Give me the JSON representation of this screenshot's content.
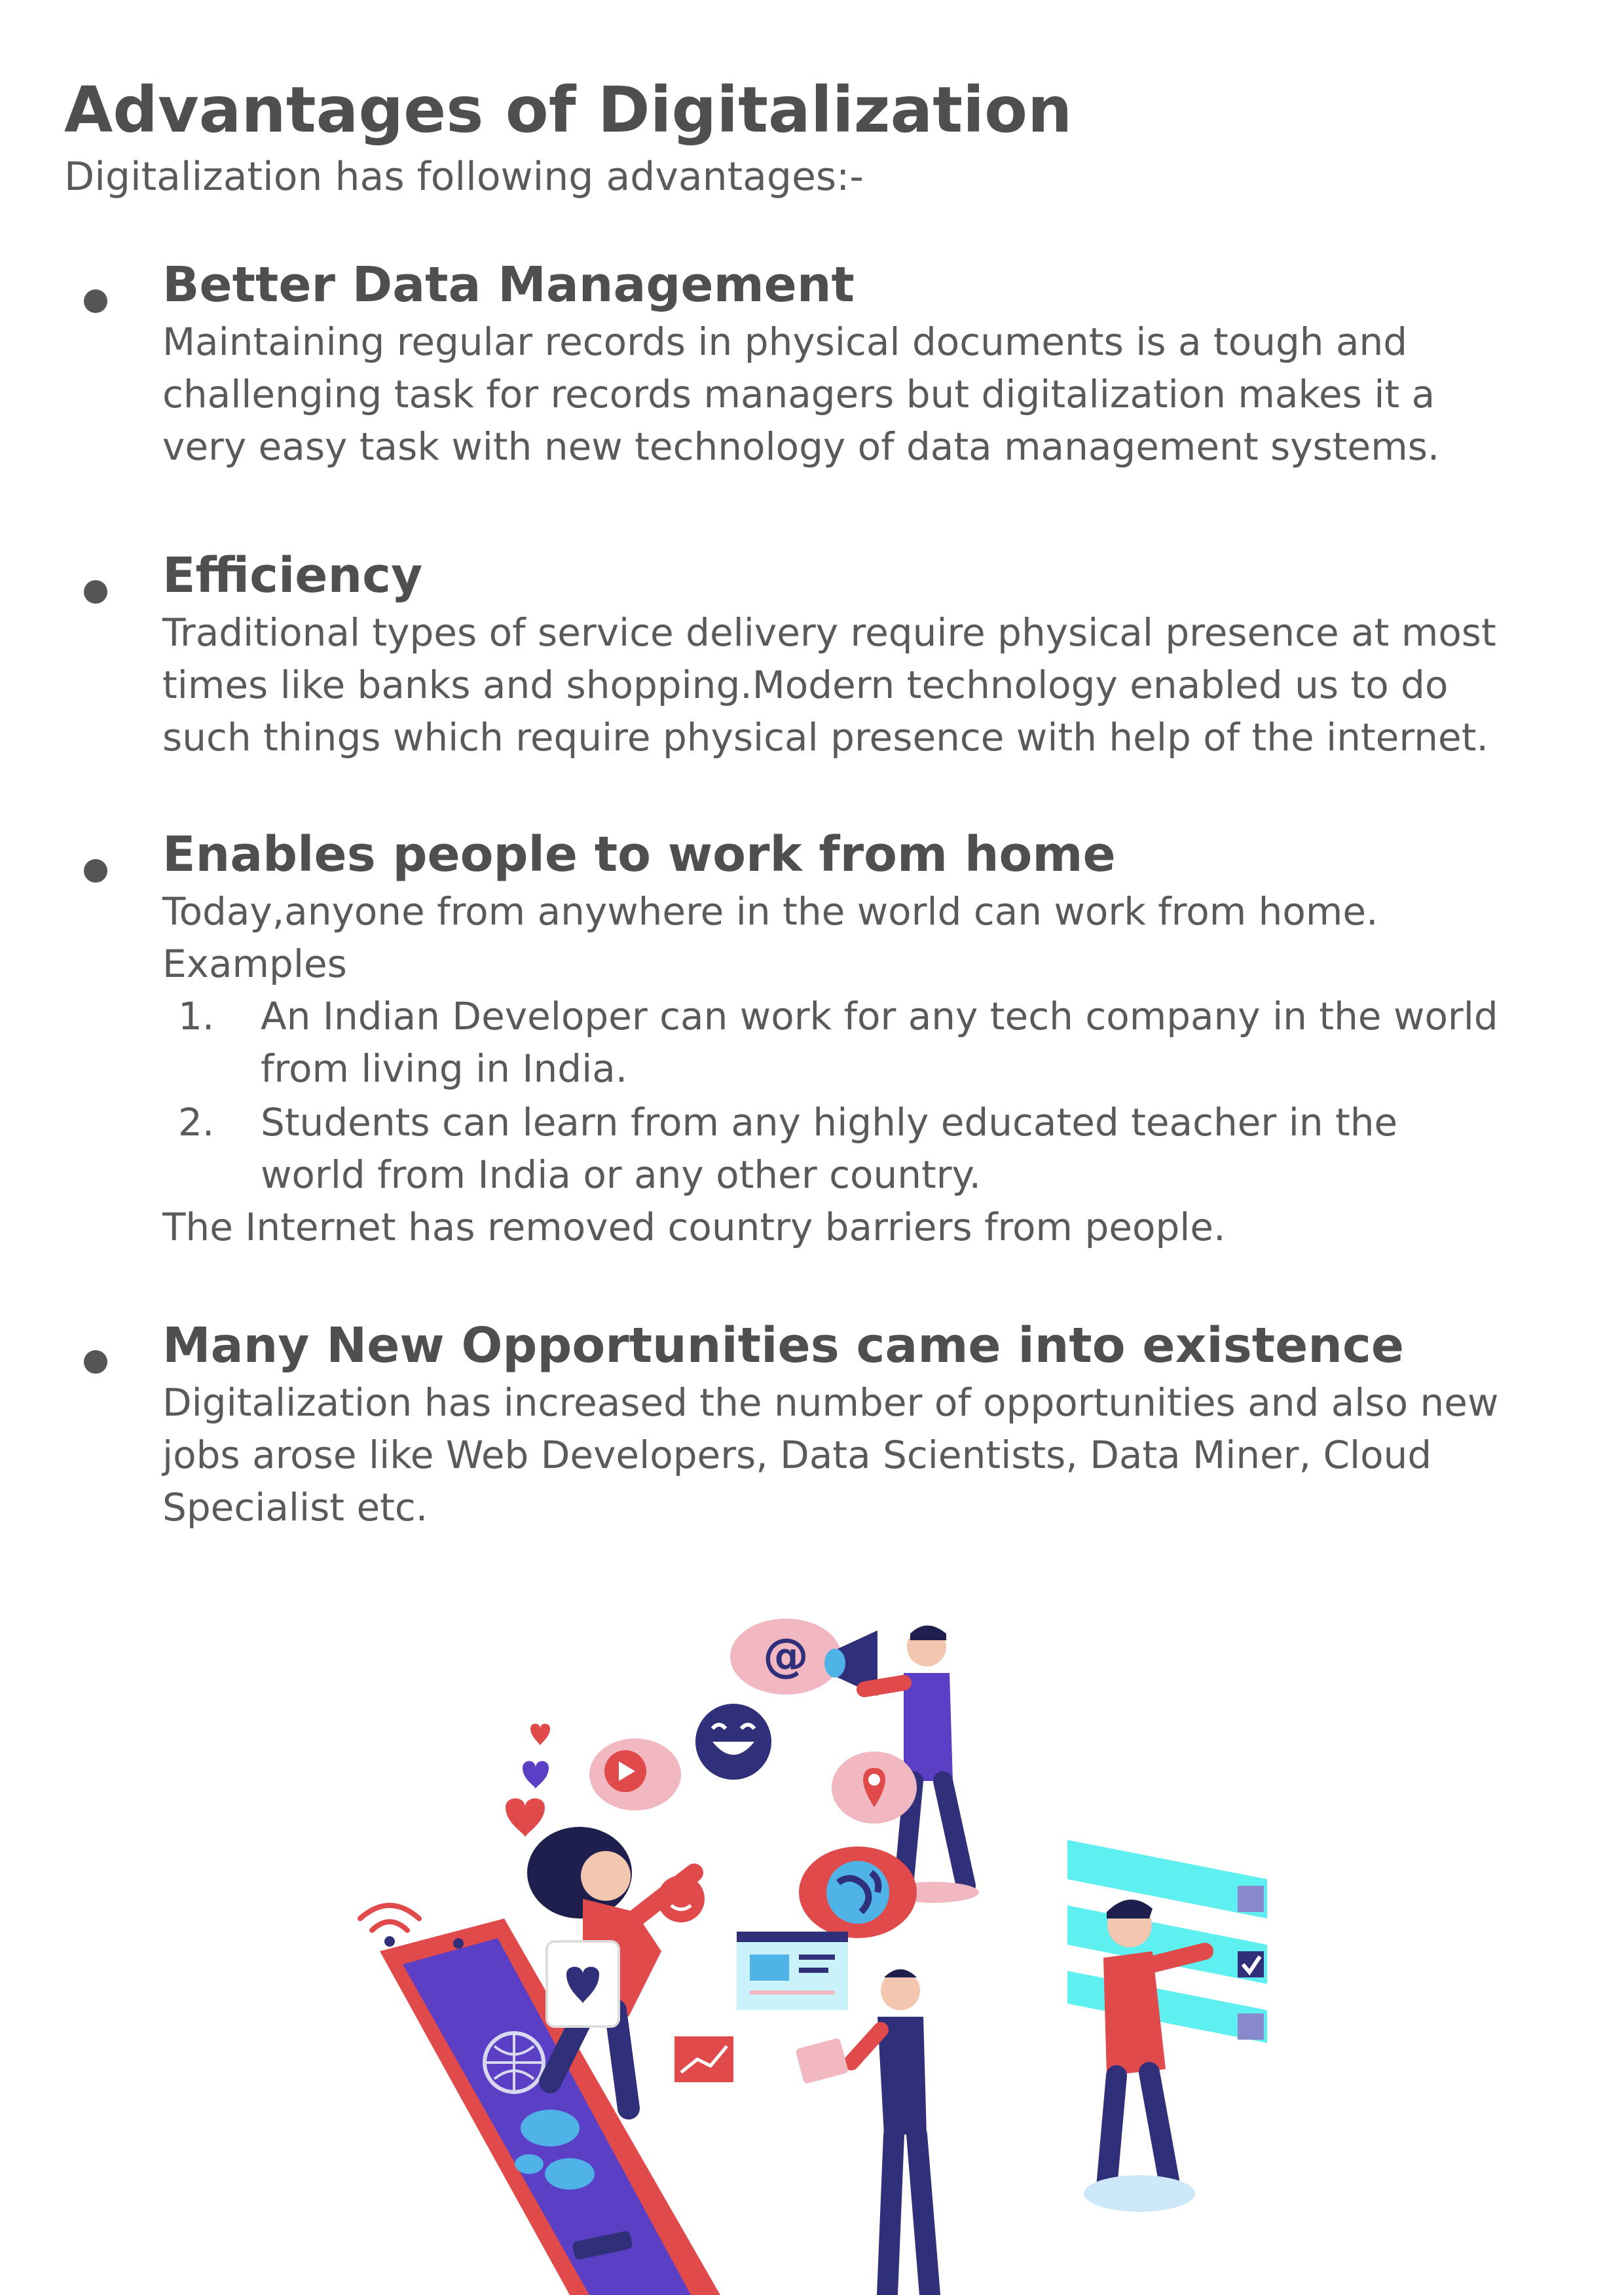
{
  "title": "Advantages of Digitalization",
  "intro": "Digitalization has following advantages:-",
  "sections": [
    {
      "heading": "Better Data Management",
      "lines": [
        "Maintaining regular records in physical documents is a tough and",
        "challenging task for records managers but digitalization makes it a",
        "very easy task with new technology of data management systems."
      ]
    },
    {
      "heading": "Efficiency",
      "lines": [
        "Traditional types of service delivery require physical presence at most",
        "times like banks and shopping.Modern technology enabled us to do",
        "such things which require physical presence with help of the internet."
      ]
    },
    {
      "heading": "Enables people to work from home",
      "lines": [
        "Today,anyone from anywhere in the world can work from home.",
        "Examples"
      ],
      "examples": [
        {
          "number": "1.",
          "lines": [
            "An Indian Developer can work for any tech company in the world",
            "from living in India."
          ]
        },
        {
          "number": "2.",
          "lines": [
            "Students can learn from any highly educated teacher in the",
            "world from India or any other country."
          ]
        }
      ],
      "closing": "The Internet has removed country barriers from people."
    },
    {
      "heading": "Many New Opportunities came into existence",
      "lines": [
        "Digitalization has increased the number of opportunities and also new",
        "jobs arose like Web Developers, Data Scientists, Data Miner, Cloud",
        "Specialist etc."
      ]
    }
  ],
  "illustration": {
    "email_symbol": "@",
    "colors": {
      "red": "#e04a4a",
      "navy": "#2f2f7a",
      "purple": "#5b3fc4",
      "cyan": "#5ef0f0",
      "pink": "#f2b8c2"
    }
  }
}
